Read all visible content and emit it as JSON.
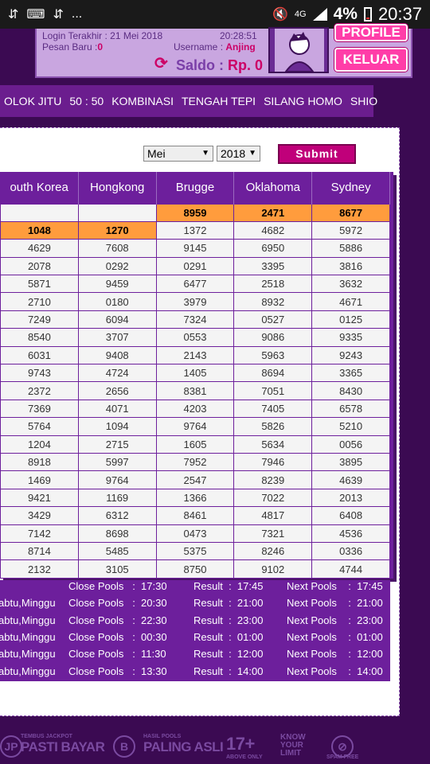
{
  "status_bar": {
    "left_icons": [
      "usb-icon",
      "keyboard-icon",
      "usb-icon",
      "more-icon"
    ],
    "more": "...",
    "network": "4G",
    "battery": "4%",
    "time": "20:37"
  },
  "account": {
    "login_label": "Login Terakhir : 21 Mei 2018",
    "login_time": "20:28:51",
    "pesan_label": "Pesan Baru :",
    "pesan_count": "0",
    "username_label": "Username :",
    "username_value": "Anjing",
    "saldo_label": "Saldo :",
    "saldo_value": "Rp. 0",
    "profile_button": "PROFILE",
    "logout_button": "KELUAR"
  },
  "menu": [
    "OLOK JITU",
    "50 : 50",
    "KOMBINASI",
    "TENGAH TEPI",
    "SILANG HOMO",
    "SHIO"
  ],
  "filter": {
    "month": "Mei",
    "year": "2018",
    "submit": "Submit"
  },
  "table": {
    "headers": [
      "outh Korea",
      "Hongkong",
      "Brugge",
      "Oklahoma",
      "Sydney"
    ],
    "rows": [
      [
        "",
        "",
        "8959",
        "2471",
        "8677"
      ],
      [
        "1048",
        "1270",
        "1372",
        "4682",
        "5972"
      ],
      [
        "4629",
        "7608",
        "9145",
        "6950",
        "5886"
      ],
      [
        "2078",
        "0292",
        "0291",
        "3395",
        "3816"
      ],
      [
        "5871",
        "9459",
        "6477",
        "2518",
        "3632"
      ],
      [
        "2710",
        "0180",
        "3979",
        "8932",
        "4671"
      ],
      [
        "7249",
        "6094",
        "7324",
        "0527",
        "0125"
      ],
      [
        "8540",
        "3707",
        "0553",
        "9086",
        "9335"
      ],
      [
        "6031",
        "9408",
        "2143",
        "5963",
        "9243"
      ],
      [
        "9743",
        "4724",
        "1405",
        "8694",
        "3365"
      ],
      [
        "2372",
        "2656",
        "8381",
        "7051",
        "8430"
      ],
      [
        "7369",
        "4071",
        "4203",
        "7405",
        "6578"
      ],
      [
        "5764",
        "1094",
        "9764",
        "5826",
        "5210"
      ],
      [
        "1204",
        "2715",
        "1605",
        "5634",
        "0056"
      ],
      [
        "8918",
        "5997",
        "7952",
        "7946",
        "3895"
      ],
      [
        "1469",
        "9764",
        "2547",
        "8239",
        "4639"
      ],
      [
        "9421",
        "1169",
        "1366",
        "7022",
        "2013"
      ],
      [
        "3429",
        "6312",
        "8461",
        "4817",
        "6408"
      ],
      [
        "7142",
        "8698",
        "0473",
        "7321",
        "4536"
      ],
      [
        "8714",
        "5485",
        "5375",
        "8246",
        "0336"
      ],
      [
        "2132",
        "3105",
        "8750",
        "9102",
        "4744"
      ]
    ]
  },
  "schedule": [
    {
      "days": "",
      "close": "Close Pools   :  17:30",
      "result": "Result  :  17:45",
      "next": "Next Pools    :  17:45"
    },
    {
      "days": "abtu,Minggu",
      "close": "Close Pools   :  20:30",
      "result": "Result  :  21:00",
      "next": "Next Pools    :  21:00"
    },
    {
      "days": "abtu,Minggu",
      "close": "Close Pools   :  22:30",
      "result": "Result  :  23:00",
      "next": "Next Pools    :  23:00"
    },
    {
      "days": "abtu,Minggu",
      "close": "Close Pools   :  00:30",
      "result": "Result  :  01:00",
      "next": "Next Pools    :  01:00"
    },
    {
      "days": "abtu,Minggu",
      "close": "Close Pools   :  11:30",
      "result": "Result  :  12:00",
      "next": "Next Pools    :  12:00"
    },
    {
      "days": "abtu,Minggu",
      "close": "Close Pools   :  13:30",
      "result": "Result  :  14:00",
      "next": "Next Pools    :  14:00"
    }
  ],
  "footer": {
    "item1_small": "TEMBUS JACKPOT",
    "item1_big": "PASTI BAYAR",
    "item2_small": "HASIL POOLS",
    "item2_big": "PALING ASLI",
    "age": "17+",
    "age_small": "ABOVE ONLY",
    "know": "KNOW YOUR LIMIT",
    "spam": "SPAM FREE"
  }
}
